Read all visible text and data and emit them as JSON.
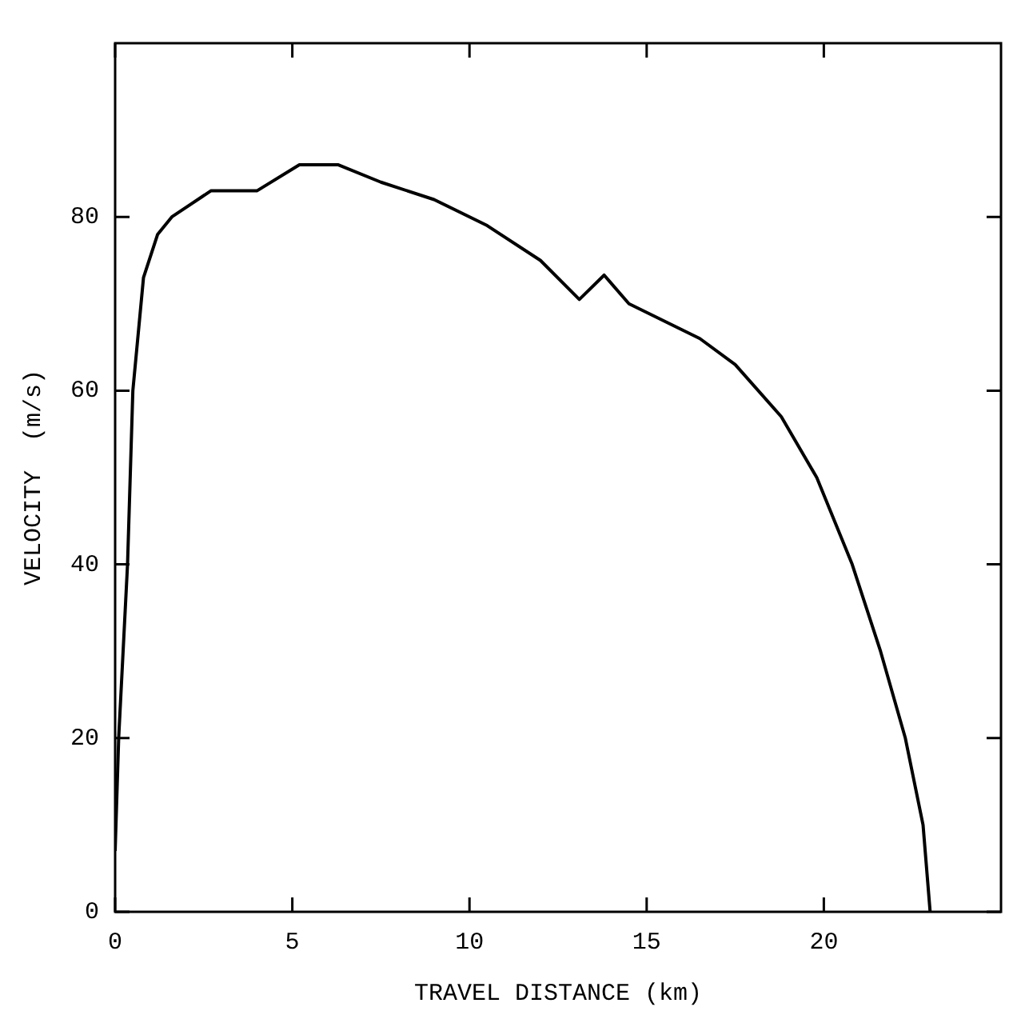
{
  "chart_data": {
    "type": "line",
    "xlabel": "TRAVEL DISTANCE (km)",
    "ylabel": "VELOCITY  (m/s)",
    "x": [
      0,
      0.1,
      0.35,
      0.5,
      0.8,
      1.2,
      1.6,
      2.7,
      4,
      5.2,
      6.3,
      7.5,
      9,
      10.5,
      12,
      13.1,
      13.8,
      14.5,
      16.5,
      17.5,
      18.8,
      19.8,
      20.8,
      21.6,
      22.3,
      22.8,
      23
    ],
    "series": [
      {
        "color": "#000000",
        "values": [
          7,
          20,
          40,
          60,
          73,
          78,
          80,
          83,
          83,
          86,
          86,
          84,
          82,
          79,
          75,
          70.5,
          73.3,
          70,
          66,
          63,
          57,
          50,
          40,
          30,
          20,
          10,
          0
        ]
      }
    ],
    "xlim": [
      0,
      25
    ],
    "xticks": [
      0,
      5,
      10,
      15,
      20
    ],
    "ylim": [
      0,
      100
    ],
    "yticks": [
      0,
      20,
      40,
      60,
      80
    ],
    "grid": false,
    "legend": false,
    "marker": "none",
    "line_style": "solid"
  }
}
